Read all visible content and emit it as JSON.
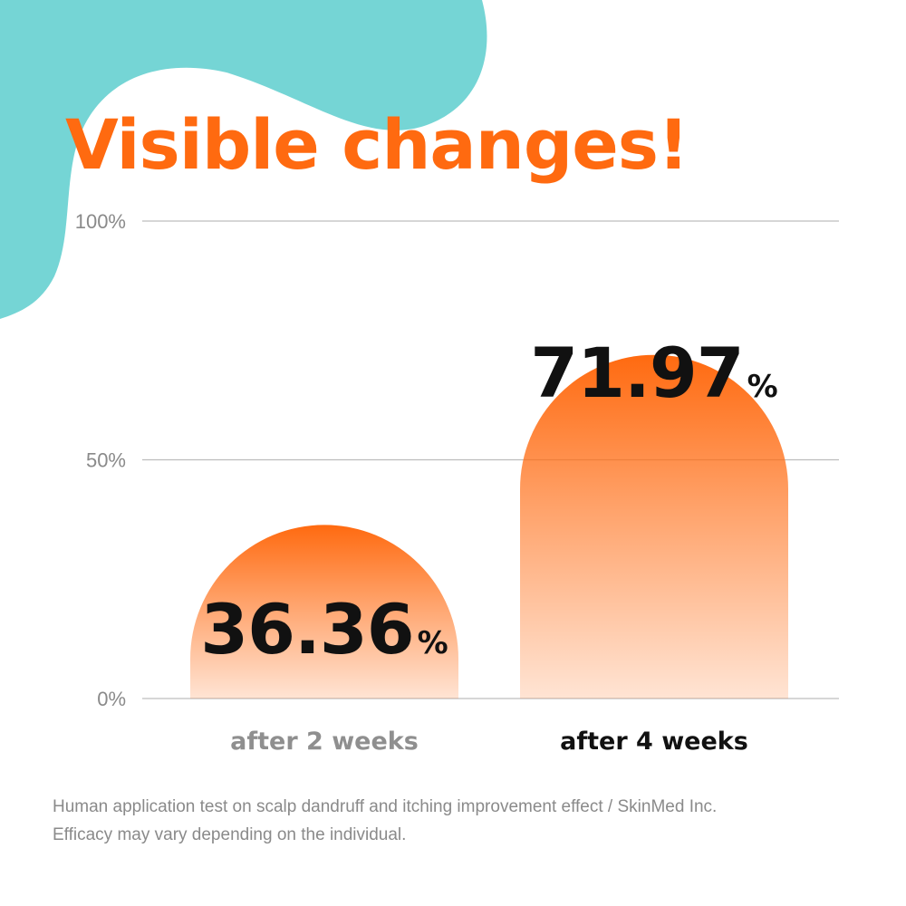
{
  "headline": "Visible changes!",
  "chart_data": {
    "type": "bar",
    "title": "",
    "xlabel": "",
    "ylabel": "",
    "categories": [
      "after 2 weeks",
      "after 4 weeks"
    ],
    "values": [
      36.36,
      71.97
    ],
    "value_labels": [
      "36.36",
      "71.97"
    ],
    "value_suffix": "%",
    "ylim": [
      0,
      100
    ],
    "yticks": [
      0,
      50,
      100
    ],
    "ytick_labels": [
      "0%",
      "50%",
      "100%"
    ],
    "grid": true,
    "bar_color": "#ff6a10",
    "highlighted_category": "after 4 weeks"
  },
  "colors": {
    "accent": "#ff6a10",
    "decoration": "#75d5d5"
  },
  "footnote": {
    "line1": "Human application test on scalp dandruff and itching improvement effect / SkinMed Inc.",
    "line2": "Efficacy may vary depending on the individual."
  }
}
